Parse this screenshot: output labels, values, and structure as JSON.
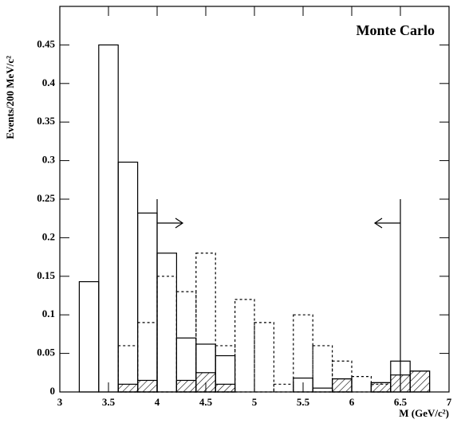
{
  "chart_data": {
    "type": "histogram",
    "annotation": "Monte Carlo",
    "xlabel": "M (GeV/c²)",
    "ylabel": "Events/200 MeV/c²",
    "bins": [
      3.0,
      3.2,
      3.4,
      3.6,
      3.8,
      4.0,
      4.2,
      4.4,
      4.6,
      4.8,
      5.0,
      5.2,
      5.4,
      5.6,
      5.8,
      6.0,
      6.2,
      6.4,
      6.6,
      6.8
    ],
    "series": [
      {
        "style": "solid",
        "color": "#000000",
        "values": [
          null,
          0.143,
          0.45,
          0.298,
          0.232,
          0.18,
          0.07,
          0.062,
          0.047,
          null,
          null,
          null,
          0.018,
          0.005,
          0.017,
          null,
          0.012,
          0.04,
          0.027
        ]
      },
      {
        "style": "dashed",
        "color": "#000000",
        "values": [
          null,
          null,
          null,
          0.06,
          0.09,
          0.15,
          0.13,
          0.18,
          0.06,
          0.12,
          0.09,
          0.01,
          0.1,
          0.06,
          0.04,
          0.02,
          0.01,
          null,
          null
        ]
      },
      {
        "style": "hatched",
        "color": "#000000",
        "values": [
          null,
          null,
          null,
          0.01,
          0.015,
          null,
          0.015,
          0.025,
          0.01,
          null,
          null,
          null,
          null,
          null,
          0.017,
          null,
          0.012,
          0.022,
          0.027
        ]
      }
    ],
    "cuts": [
      4,
      6.5
    ],
    "cut_height": 0.25,
    "xlim": [
      3,
      7
    ],
    "xticks": [
      3,
      3.5,
      4,
      4.5,
      5,
      5.5,
      6,
      6.5,
      7
    ],
    "ylim": [
      0,
      0.5
    ],
    "yticks": [
      0,
      0.05,
      0.1,
      0.15,
      0.2,
      0.25,
      0.3,
      0.35,
      0.4,
      0.45
    ]
  }
}
